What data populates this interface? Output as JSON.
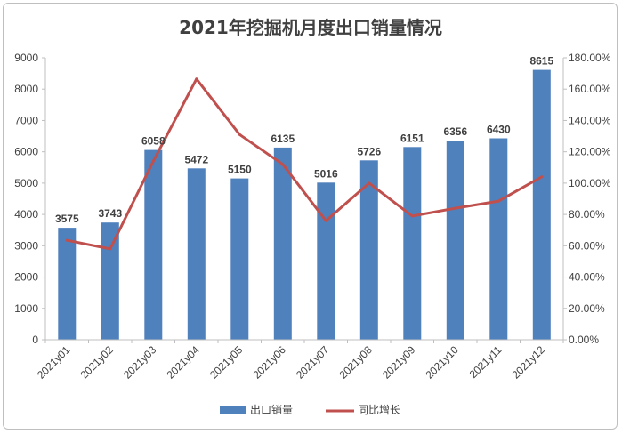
{
  "chart_data": {
    "type": "bar",
    "title": "2021年挖掘机月度出口销量情况",
    "categories": [
      "2021y01",
      "2021y02",
      "2021y03",
      "2021y04",
      "2021y05",
      "2021y06",
      "2021y07",
      "2021y08",
      "2021y09",
      "2021y10",
      "2021y11",
      "2021y12"
    ],
    "series": [
      {
        "name": "出口销量",
        "type": "bar",
        "axis": "left",
        "color": "#4f81bd",
        "values": [
          3575,
          3743,
          6058,
          5472,
          5150,
          6135,
          5016,
          5726,
          6151,
          6356,
          6430,
          8615
        ],
        "data_labels": [
          "3575",
          "3743",
          "6058",
          "5472",
          "5150",
          "6135",
          "5016",
          "5726",
          "6151",
          "6356",
          "6430",
          "8615"
        ]
      },
      {
        "name": "同比增长",
        "type": "line",
        "axis": "right",
        "color": "#c0504d",
        "values": [
          0.635,
          0.58,
          1.14,
          1.665,
          1.31,
          1.12,
          0.76,
          1.0,
          0.79,
          0.84,
          0.885,
          1.04
        ]
      }
    ],
    "y_left": {
      "min": 0,
      "max": 9000,
      "ticks": [
        "0",
        "1000",
        "2000",
        "3000",
        "4000",
        "5000",
        "6000",
        "7000",
        "8000",
        "9000"
      ]
    },
    "y_right": {
      "min": 0,
      "max": 1.8,
      "ticks": [
        "0.00%",
        "20.00%",
        "40.00%",
        "60.00%",
        "80.00%",
        "100.00%",
        "120.00%",
        "140.00%",
        "160.00%",
        "180.00%"
      ]
    },
    "grid": false,
    "legend_position": "bottom"
  }
}
